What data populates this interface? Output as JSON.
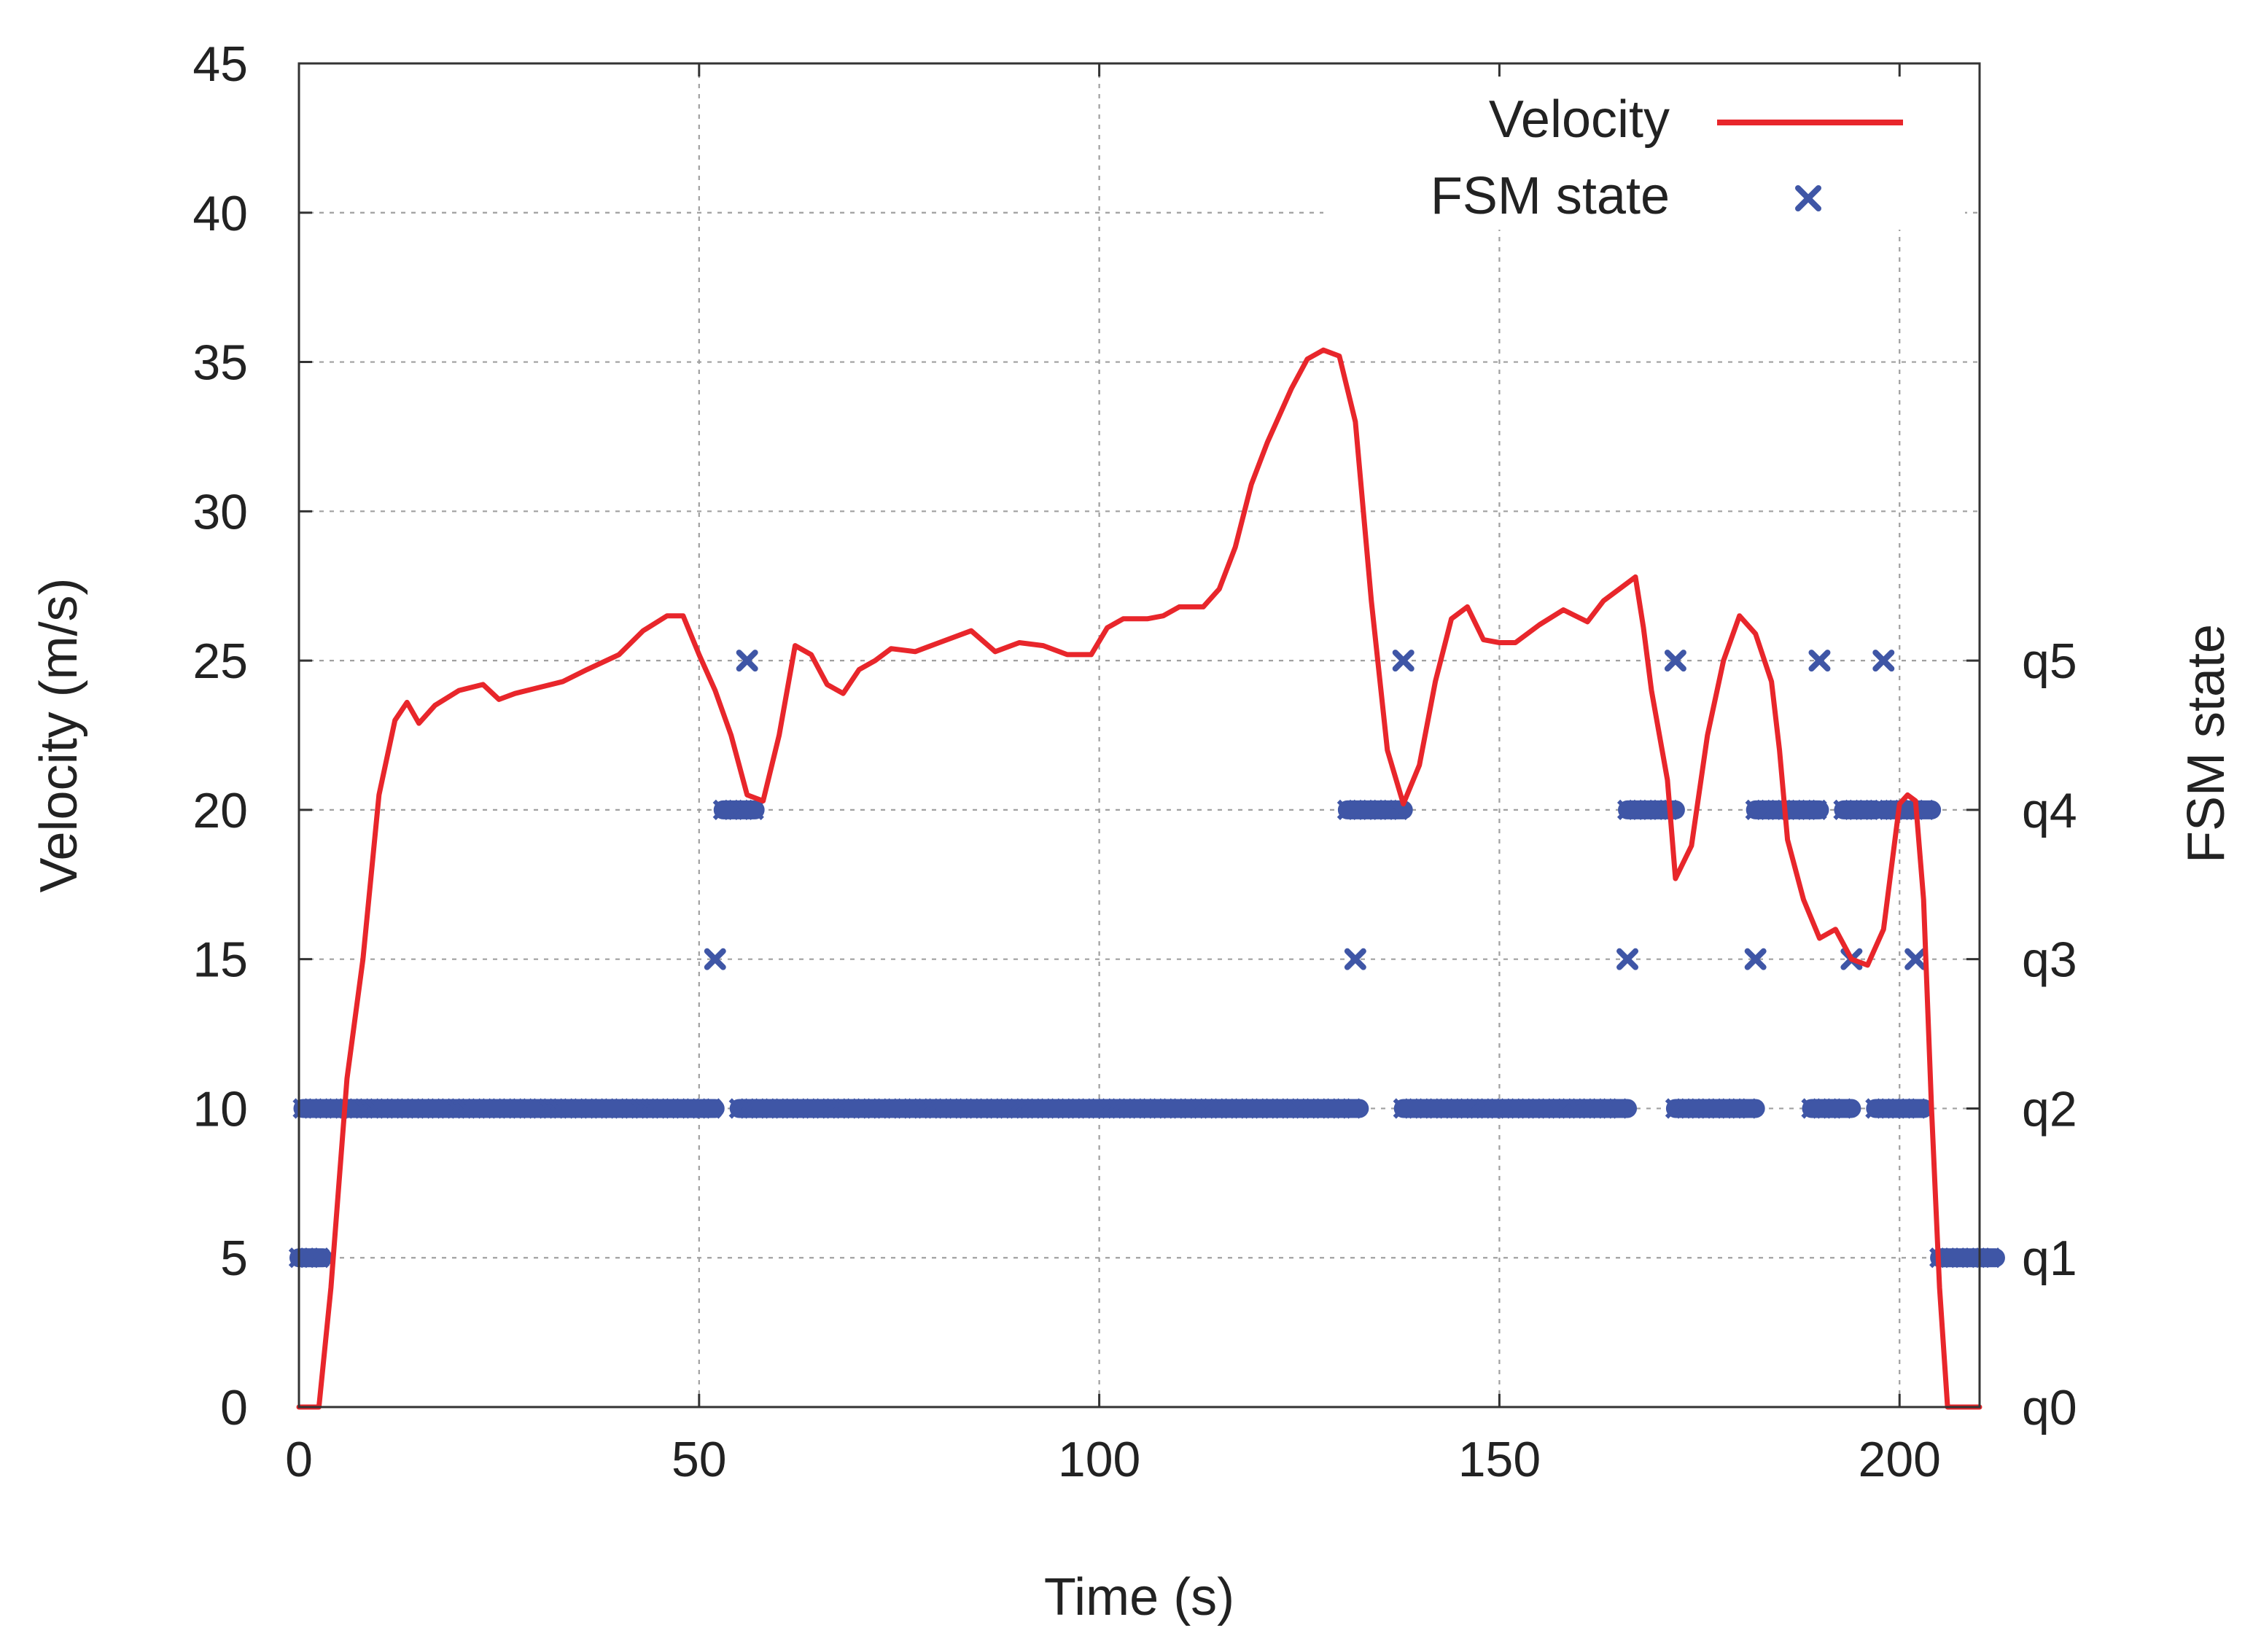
{
  "chart_data": {
    "type": "line",
    "title": "",
    "xlabel": "Time (s)",
    "ylabel": "Velocity (m/s)",
    "y2label": "FSM state",
    "xlim": [
      0,
      210
    ],
    "ylim": [
      0,
      45
    ],
    "grid": true,
    "legend_position": "top-right",
    "x_ticks": [
      "0",
      "50",
      "100",
      "150",
      "200"
    ],
    "x_tick_values": [
      0,
      50,
      100,
      150,
      200
    ],
    "y_ticks": [
      "0",
      "5",
      "10",
      "15",
      "20",
      "25",
      "30",
      "35",
      "40",
      "45"
    ],
    "y_tick_values": [
      0,
      5,
      10,
      15,
      20,
      25,
      30,
      35,
      40,
      45
    ],
    "y2_ticks": [
      "q0",
      "q1",
      "q2",
      "q3",
      "q4",
      "q5"
    ],
    "y2_tick_values": [
      0,
      5,
      10,
      15,
      20,
      25
    ],
    "colors": {
      "velocity": "#e8262b",
      "fsm": "#3f56a6"
    },
    "series": [
      {
        "name": "Velocity",
        "marker": "line",
        "x": [
          0,
          2.5,
          4,
          6,
          8,
          10,
          12,
          13.5,
          15,
          17,
          20,
          23,
          25,
          27,
          30,
          33,
          36,
          40,
          43,
          46,
          48,
          50,
          52,
          54,
          56,
          58,
          60,
          62,
          64,
          66,
          68,
          70,
          72,
          74,
          77,
          80,
          84,
          87,
          90,
          93,
          96,
          99,
          101,
          103,
          106,
          108,
          110,
          113,
          115,
          117,
          119,
          121,
          124,
          126,
          128,
          130,
          132,
          134,
          136,
          138,
          140,
          142,
          144,
          146,
          148,
          150,
          152,
          155,
          158,
          161,
          163,
          165,
          167,
          168,
          169,
          171,
          172,
          174,
          176,
          178,
          180,
          182,
          184,
          185,
          186,
          188,
          190,
          192,
          194,
          196,
          198,
          200,
          201,
          202,
          203,
          204,
          205,
          206,
          207,
          209,
          210
        ],
        "values": [
          0,
          0,
          4,
          11,
          15,
          20.5,
          23,
          23.6,
          22.9,
          23.5,
          24,
          24.2,
          23.7,
          23.9,
          24.1,
          24.3,
          24.7,
          25.2,
          26,
          26.5,
          26.5,
          25.2,
          24,
          22.5,
          20.5,
          20.3,
          22.5,
          25.5,
          25.2,
          24.2,
          23.9,
          24.7,
          25,
          25.4,
          25.3,
          25.6,
          26,
          25.3,
          25.6,
          25.5,
          25.2,
          25.2,
          26.1,
          26.4,
          26.4,
          26.5,
          26.8,
          26.8,
          27.4,
          28.8,
          30.9,
          32.3,
          34.1,
          35.1,
          35.4,
          35.2,
          33,
          27,
          22,
          20.2,
          21.5,
          24.3,
          26.4,
          26.8,
          25.7,
          25.6,
          25.6,
          26.2,
          26.7,
          26.3,
          27,
          27.4,
          27.8,
          26.1,
          24,
          21,
          17.7,
          18.8,
          22.5,
          25,
          26.5,
          25.9,
          24.3,
          22,
          19,
          17,
          15.7,
          16,
          15,
          14.8,
          16,
          20.2,
          20.5,
          20.3,
          17,
          10,
          4,
          0,
          0,
          0,
          0
        ]
      },
      {
        "name": "FSM state",
        "marker": "x",
        "segments": [
          {
            "x_start": 0,
            "x_end": 3,
            "value": 5
          },
          {
            "x_start": 0.5,
            "x_end": 52,
            "value": 10
          },
          {
            "x_start": 55,
            "x_end": 132.5,
            "value": 10
          },
          {
            "x_start": 138,
            "x_end": 166,
            "value": 10
          },
          {
            "x_start": 172,
            "x_end": 182,
            "value": 10
          },
          {
            "x_start": 189,
            "x_end": 194,
            "value": 10
          },
          {
            "x_start": 197,
            "x_end": 203,
            "value": 10
          },
          {
            "x_start": 205,
            "x_end": 212,
            "value": 5
          },
          {
            "x_start": 53,
            "x_end": 57,
            "value": 20
          },
          {
            "x_start": 131,
            "x_end": 138,
            "value": 20
          },
          {
            "x_start": 166,
            "x_end": 172,
            "value": 20
          },
          {
            "x_start": 182,
            "x_end": 190,
            "value": 20
          },
          {
            "x_start": 193,
            "x_end": 197,
            "value": 20
          },
          {
            "x_start": 198,
            "x_end": 204,
            "value": 20
          }
        ],
        "points": [
          {
            "x": 52,
            "value": 15
          },
          {
            "x": 56,
            "value": 25
          },
          {
            "x": 132,
            "value": 15
          },
          {
            "x": 138,
            "value": 25
          },
          {
            "x": 166,
            "value": 15
          },
          {
            "x": 172,
            "value": 25
          },
          {
            "x": 182,
            "value": 15
          },
          {
            "x": 190,
            "value": 25
          },
          {
            "x": 194,
            "value": 15
          },
          {
            "x": 198,
            "value": 25
          },
          {
            "x": 202,
            "value": 15
          }
        ]
      }
    ],
    "legend": [
      {
        "label": "Velocity",
        "marker": "line"
      },
      {
        "label": "FSM state",
        "marker": "x"
      }
    ]
  }
}
